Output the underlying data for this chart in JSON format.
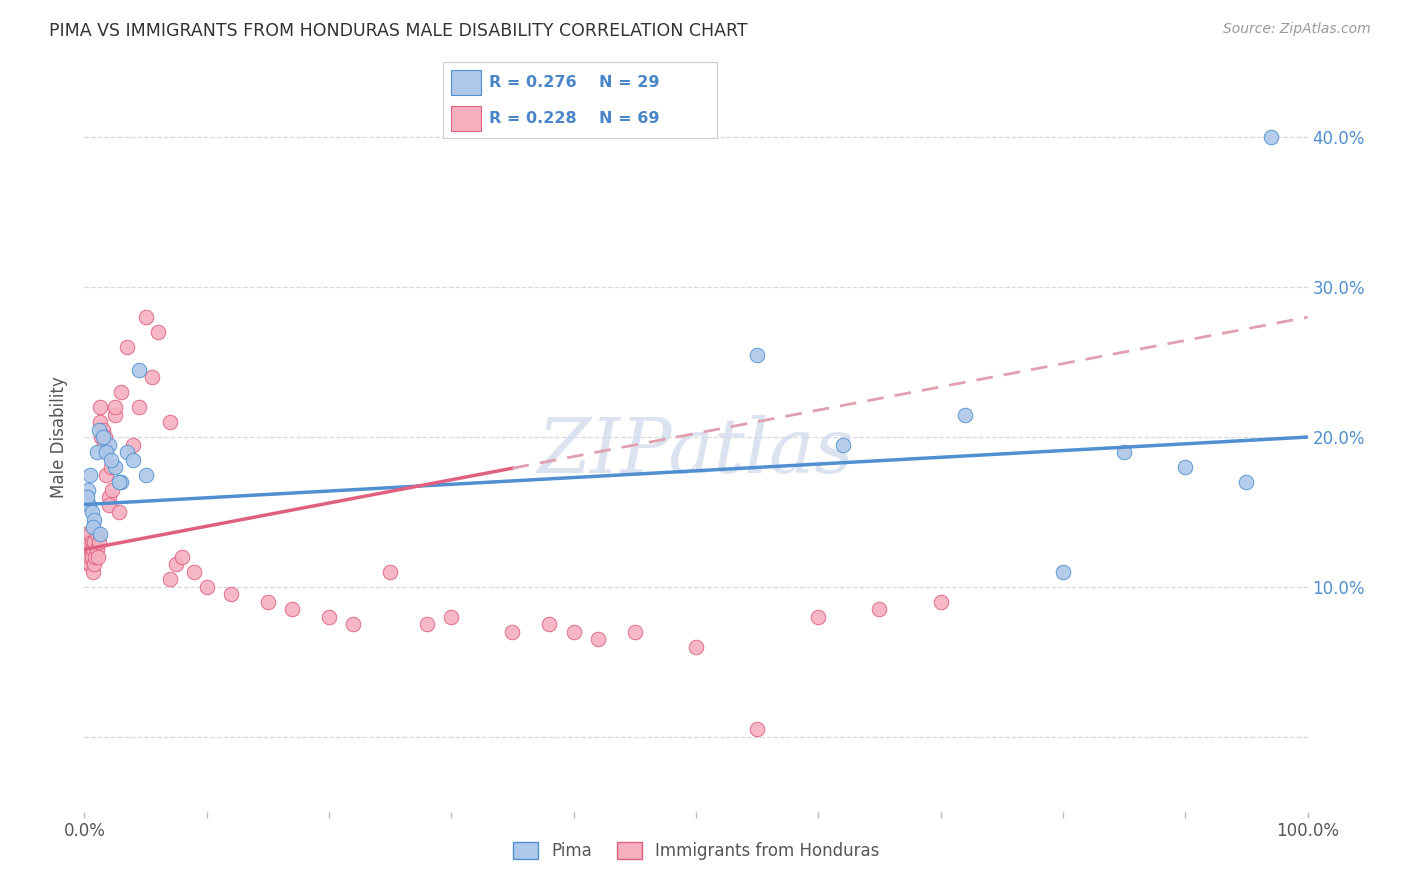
{
  "title": "PIMA VS IMMIGRANTS FROM HONDURAS MALE DISABILITY CORRELATION CHART",
  "source": "Source: ZipAtlas.com",
  "ylabel": "Male Disability",
  "legend_label1": "Pima",
  "legend_label2": "Immigrants from Honduras",
  "R1": 0.276,
  "N1": 29,
  "R2": 0.228,
  "N2": 69,
  "pima_color": "#adc8e8",
  "honduras_color": "#f5b0c0",
  "pima_line_color": "#5090d0",
  "honduras_line_color": "#e06080",
  "dashed_line_color": "#e0a0b0",
  "pima_x": [
    0.5,
    1.0,
    1.2,
    2.0,
    2.5,
    3.0,
    3.5,
    4.0,
    4.5,
    5.0,
    0.3,
    0.4,
    0.6,
    0.8,
    1.5,
    1.8,
    2.2,
    2.8,
    0.2,
    0.7,
    1.3,
    55.0,
    62.0,
    72.0,
    80.0,
    85.0,
    90.0,
    95.0,
    97.0
  ],
  "pima_y": [
    17.5,
    19.0,
    20.5,
    19.5,
    18.0,
    17.0,
    19.0,
    18.5,
    24.5,
    17.5,
    16.5,
    15.5,
    15.0,
    14.5,
    20.0,
    19.0,
    18.5,
    17.0,
    16.0,
    14.0,
    13.5,
    25.5,
    19.5,
    21.5,
    11.0,
    19.0,
    18.0,
    17.0,
    40.0
  ],
  "honduras_x": [
    0.1,
    0.15,
    0.2,
    0.2,
    0.25,
    0.3,
    0.3,
    0.35,
    0.4,
    0.4,
    0.5,
    0.5,
    0.5,
    0.6,
    0.6,
    0.7,
    0.7,
    0.8,
    0.8,
    0.9,
    1.0,
    1.0,
    1.1,
    1.2,
    1.3,
    1.3,
    1.4,
    1.5,
    1.6,
    1.7,
    1.8,
    2.0,
    2.0,
    2.2,
    2.3,
    2.5,
    2.5,
    2.8,
    3.0,
    3.5,
    4.0,
    4.5,
    5.0,
    5.5,
    6.0,
    7.0,
    7.0,
    7.5,
    8.0,
    9.0,
    10.0,
    12.0,
    15.0,
    17.0,
    20.0,
    22.0,
    25.0,
    28.0,
    30.0,
    35.0,
    38.0,
    40.0,
    42.0,
    45.0,
    50.0,
    55.0,
    60.0,
    65.0,
    70.0
  ],
  "honduras_y": [
    13.0,
    13.5,
    12.5,
    13.0,
    12.0,
    13.0,
    12.5,
    11.5,
    12.0,
    13.0,
    11.5,
    13.5,
    12.0,
    13.0,
    12.0,
    12.5,
    11.0,
    13.0,
    11.5,
    12.0,
    13.5,
    12.5,
    12.0,
    13.0,
    22.0,
    21.0,
    20.0,
    20.5,
    19.5,
    20.0,
    17.5,
    16.0,
    15.5,
    18.0,
    16.5,
    21.5,
    22.0,
    15.0,
    23.0,
    26.0,
    19.5,
    22.0,
    28.0,
    24.0,
    27.0,
    21.0,
    10.5,
    11.5,
    12.0,
    11.0,
    10.0,
    9.5,
    9.0,
    8.5,
    8.0,
    7.5,
    11.0,
    7.5,
    8.0,
    7.0,
    7.5,
    7.0,
    6.5,
    7.0,
    6.0,
    0.5,
    8.0,
    8.5,
    9.0
  ],
  "xlim": [
    0,
    100
  ],
  "ylim": [
    -5,
    45
  ],
  "xtick_positions": [
    0,
    10,
    20,
    30,
    40,
    50,
    60,
    70,
    80,
    90,
    100
  ],
  "xtick_labels": [
    "0.0%",
    "",
    "",
    "",
    "",
    "",
    "",
    "",
    "",
    "",
    "100.0%"
  ],
  "ytick_positions": [
    0,
    10,
    20,
    30,
    40
  ],
  "ytick_labels": [
    "",
    "10.0%",
    "20.0%",
    "30.0%",
    "40.0%"
  ],
  "grid_color": "#d8d8e0",
  "background_color": "#ffffff",
  "watermark": "ZIPatlas",
  "watermark_color": "#ccd8ea",
  "pima_line_start_x": 0,
  "pima_line_start_y": 15.5,
  "pima_line_end_x": 100,
  "pima_line_end_y": 20.0,
  "honduras_line_start_x": 0,
  "honduras_line_start_y": 12.5,
  "honduras_solid_end_x": 35,
  "honduras_line_end_x": 100,
  "honduras_line_end_y": 28.0
}
